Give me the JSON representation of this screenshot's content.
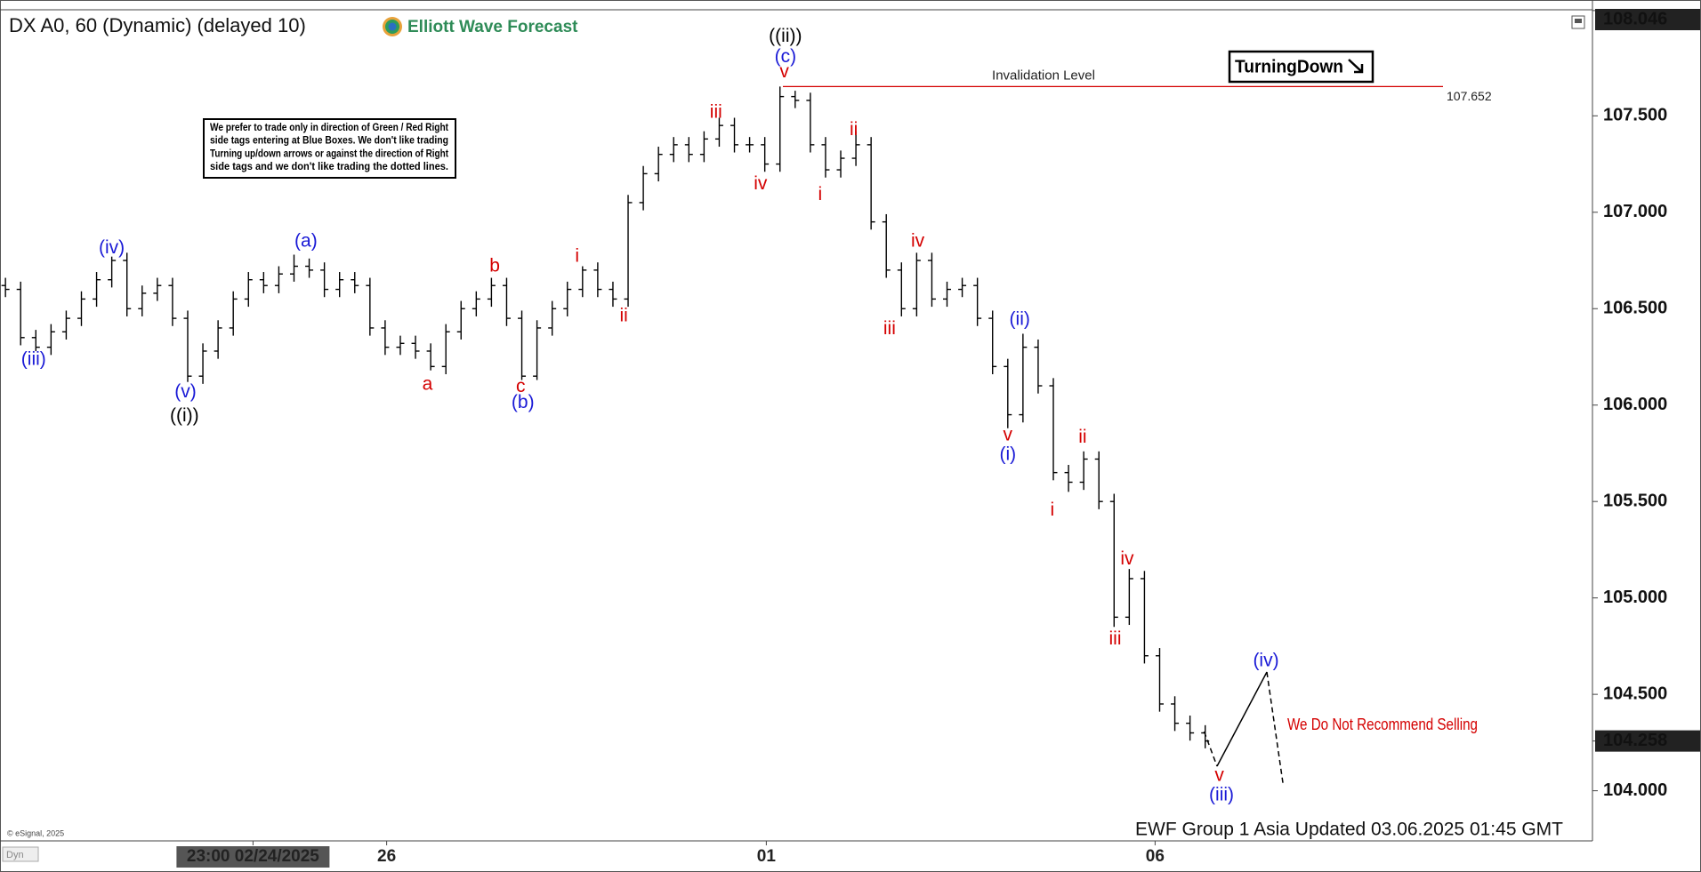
{
  "chart_data": {
    "type": "ohlc",
    "title": "DX A0, 60 (Dynamic) (delayed 10)",
    "logo": "Elliott Wave Forecast",
    "color": "#000000",
    "open": [
      106.62,
      106.6,
      106.35,
      106.3,
      106.38,
      106.45,
      106.55,
      106.65,
      106.75,
      106.5,
      106.58,
      106.62,
      106.45,
      106.15,
      106.28,
      106.4,
      106.55,
      106.65,
      106.62,
      106.68,
      106.72,
      106.7,
      106.6,
      106.65,
      106.62,
      106.4,
      106.3,
      106.32,
      106.28,
      106.2,
      106.38,
      106.5,
      106.55,
      106.62,
      106.45,
      106.15,
      106.4,
      106.5,
      106.6,
      106.7,
      106.6,
      106.55,
      107.05,
      107.2,
      107.3,
      107.35,
      107.3,
      107.38,
      107.45,
      107.35,
      107.35,
      107.25,
      107.6,
      107.58,
      107.35,
      107.22,
      107.28,
      107.35,
      106.95,
      106.7,
      106.5,
      106.75,
      106.55,
      106.6,
      106.62,
      106.45,
      106.2,
      105.95,
      106.3,
      106.1,
      105.65,
      105.6,
      105.72,
      105.5,
      104.9,
      105.1,
      104.7,
      104.45,
      104.35,
      104.3
    ],
    "high": [
      106.66,
      106.64,
      106.39,
      106.42,
      106.49,
      106.59,
      106.69,
      106.77,
      106.79,
      106.62,
      106.66,
      106.66,
      106.49,
      106.32,
      106.44,
      106.59,
      106.69,
      106.69,
      106.72,
      106.78,
      106.76,
      106.74,
      106.69,
      106.69,
      106.66,
      106.44,
      106.36,
      106.36,
      106.32,
      106.42,
      106.54,
      106.59,
      106.66,
      106.66,
      106.49,
      106.44,
      106.54,
      106.64,
      106.72,
      106.74,
      106.64,
      107.09,
      107.24,
      107.34,
      107.39,
      107.39,
      107.42,
      107.49,
      107.49,
      107.39,
      107.39,
      107.652,
      107.63,
      107.62,
      107.39,
      107.32,
      107.42,
      107.39,
      106.99,
      106.74,
      106.79,
      106.79,
      106.64,
      106.66,
      106.66,
      106.49,
      106.24,
      106.37,
      106.34,
      106.14,
      105.69,
      105.76,
      105.76,
      105.54,
      105.15,
      105.14,
      104.74,
      104.49,
      104.39,
      104.34
    ],
    "low": [
      106.56,
      106.31,
      106.28,
      106.26,
      106.34,
      106.41,
      106.51,
      106.61,
      106.46,
      106.46,
      106.54,
      106.41,
      106.12,
      106.11,
      106.24,
      106.36,
      106.51,
      106.58,
      106.58,
      106.64,
      106.66,
      106.56,
      106.56,
      106.58,
      106.36,
      106.26,
      106.26,
      106.24,
      106.18,
      106.16,
      106.34,
      106.46,
      106.51,
      106.41,
      106.13,
      106.13,
      106.36,
      106.46,
      106.56,
      106.56,
      106.51,
      106.51,
      107.01,
      107.16,
      107.26,
      107.26,
      107.26,
      107.34,
      107.31,
      107.31,
      107.21,
      107.21,
      107.54,
      107.31,
      107.18,
      107.18,
      107.24,
      106.91,
      106.66,
      106.46,
      106.46,
      106.51,
      106.51,
      106.56,
      106.41,
      106.16,
      105.88,
      105.91,
      106.06,
      105.61,
      105.55,
      105.56,
      105.46,
      104.85,
      104.86,
      104.66,
      104.41,
      104.31,
      104.26,
      104.22
    ],
    "close": [
      106.6,
      106.35,
      106.3,
      106.38,
      106.45,
      106.55,
      106.65,
      106.75,
      106.5,
      106.58,
      106.62,
      106.45,
      106.15,
      106.28,
      106.4,
      106.55,
      106.65,
      106.62,
      106.68,
      106.72,
      106.7,
      106.6,
      106.65,
      106.62,
      106.4,
      106.3,
      106.32,
      106.28,
      106.2,
      106.38,
      106.5,
      106.55,
      106.62,
      106.45,
      106.15,
      106.4,
      106.5,
      106.6,
      106.7,
      106.6,
      106.55,
      107.05,
      107.2,
      107.3,
      107.35,
      107.3,
      107.38,
      107.45,
      107.35,
      107.35,
      107.25,
      107.6,
      107.58,
      107.35,
      107.22,
      107.28,
      107.35,
      106.95,
      106.7,
      106.5,
      106.75,
      106.55,
      106.6,
      106.62,
      106.45,
      106.2,
      105.95,
      106.3,
      106.1,
      105.65,
      105.6,
      105.72,
      105.5,
      104.9,
      105.1,
      104.7,
      104.45,
      104.35,
      104.3,
      104.258
    ],
    "xlim": [
      -0.36,
      104.5
    ],
    "ylim": [
      103.74,
      108.05
    ],
    "xticks": [
      {
        "value": 16.3,
        "label": "23:00 02/24/2025"
      },
      {
        "value": 25.1,
        "label": "26"
      },
      {
        "value": 50.1,
        "label": "01"
      },
      {
        "value": 75.7,
        "label": "06"
      }
    ],
    "yticks": [
      {
        "value": 104,
        "label": "104.000"
      },
      {
        "value": 104.5,
        "label": "104.500"
      },
      {
        "value": 105,
        "label": "105.000"
      },
      {
        "value": 105.5,
        "label": "105.500"
      },
      {
        "value": 106,
        "label": "106.000"
      },
      {
        "value": 106.5,
        "label": "106.500"
      },
      {
        "value": 107,
        "label": "107.000"
      },
      {
        "value": 107.5,
        "label": "107.500"
      }
    ],
    "top_price": 108.046,
    "last_price": 104.258,
    "invalidation": {
      "label": "Invalidation Level",
      "value": 107.652,
      "color": "#d40000"
    },
    "wave_labels": [
      {
        "text": "(iii)",
        "color": "#1a1ad6"
      },
      {
        "text": "(iv)",
        "color": "#1a1ad6"
      },
      {
        "text": "(v)",
        "color": "#1a1ad6"
      },
      {
        "text": "((i))",
        "color": "#000000"
      },
      {
        "text": "(a)",
        "color": "#1a1ad6"
      },
      {
        "text": "a",
        "color": "#d40000"
      },
      {
        "text": "b",
        "color": "#d40000"
      },
      {
        "text": "c",
        "color": "#d40000"
      },
      {
        "text": "(b)",
        "color": "#1a1ad6"
      },
      {
        "text": "i",
        "color": "#d40000"
      },
      {
        "text": "ii",
        "color": "#d40000"
      },
      {
        "text": "iii",
        "color": "#d40000"
      },
      {
        "text": "iv",
        "color": "#d40000"
      },
      {
        "text": "v",
        "color": "#d40000"
      },
      {
        "text": "(c)",
        "color": "#1a1ad6"
      },
      {
        "text": "((ii))",
        "color": "#000000"
      },
      {
        "text": "i",
        "color": "#d40000"
      },
      {
        "text": "ii",
        "color": "#d40000"
      },
      {
        "text": "iii",
        "color": "#d40000"
      },
      {
        "text": "iv",
        "color": "#d40000"
      },
      {
        "text": "(ii)",
        "color": "#1a1ad6"
      },
      {
        "text": "v",
        "color": "#d40000"
      },
      {
        "text": "(i)",
        "color": "#1a1ad6"
      },
      {
        "text": "i",
        "color": "#d40000"
      },
      {
        "text": "ii",
        "color": "#d40000"
      },
      {
        "text": "iii",
        "color": "#d40000"
      },
      {
        "text": "iv",
        "color": "#d40000"
      },
      {
        "text": "(iv)",
        "color": "#1a1ad6"
      },
      {
        "text": "v",
        "color": "#d40000"
      },
      {
        "text": "(iii)",
        "color": "#1a1ad6"
      }
    ],
    "note": [
      "We prefer to trade only in direction of Green / Red Right",
      "side tags entering at Blue Boxes. We don't like trading",
      "Turning up/down arrows or against the direction of Right",
      "side tags and we don't like trading the dotted lines."
    ],
    "turning_label": "TurningDown",
    "recommendation": "We Do Not Recommend Selling",
    "footer": "EWF Group 1 Asia Updated 03.06.2025 01:45 GMT",
    "copyright": "© eSignal, 2025",
    "badge": "Dyn"
  }
}
